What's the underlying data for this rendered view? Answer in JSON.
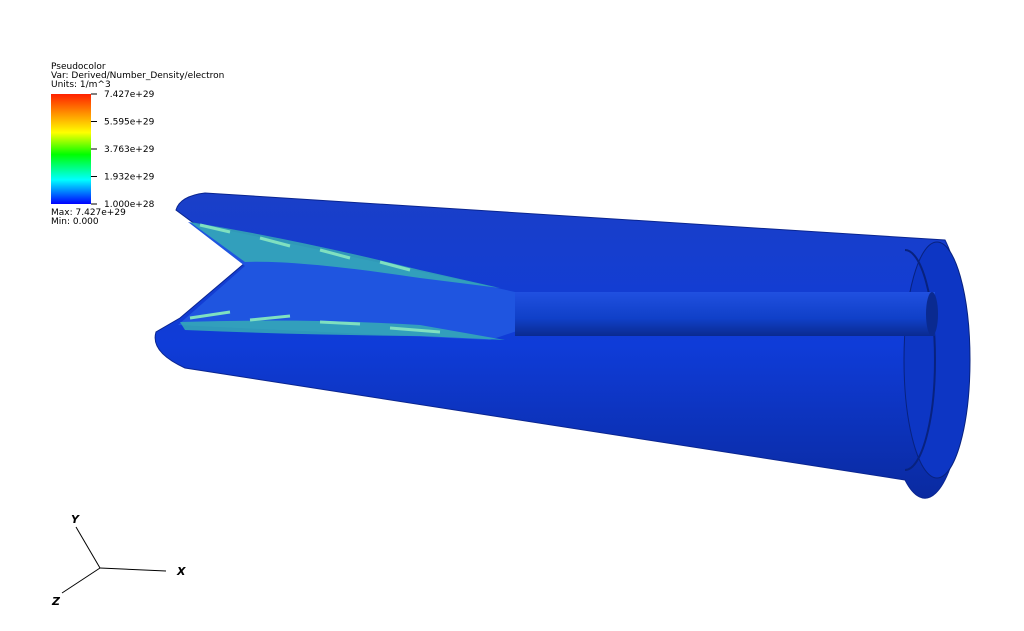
{
  "legend": {
    "title": "Pseudocolor",
    "variable": "Var: Derived/Number_Density/electron",
    "units": "Units: 1/m^3",
    "ticks": [
      "7.427e+29",
      "5.595e+29",
      "3.763e+29",
      "1.932e+29",
      "1.000e+28"
    ],
    "max": "Max: 7.427e+29",
    "min": "Min: 0.000"
  },
  "axes": {
    "x": "X",
    "y": "Y",
    "z": "Z"
  }
}
